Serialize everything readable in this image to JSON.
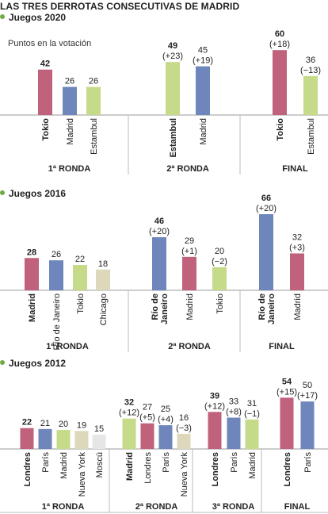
{
  "title": "LAS TRES DERROTAS CONSECUTIVAS DE MADRID",
  "subtitle": "Puntos en la votación",
  "colors": {
    "pink": "#c0627b",
    "blue": "#6e86bb",
    "green": "#c5db8a",
    "beige": "#ddd8bb",
    "gray": "#e6e6e6",
    "accent": "#74a844"
  },
  "chart_data": [
    {
      "type": "bar",
      "title": "Juegos 2020",
      "rounds": [
        {
          "label": "1ª RONDA",
          "bars": [
            {
              "name": "Tokio",
              "value": 42,
              "change": "",
              "bold": true,
              "color": "pink"
            },
            {
              "name": "Madrid",
              "value": 26,
              "change": "",
              "bold": false,
              "color": "blue"
            },
            {
              "name": "Estambul",
              "value": 26,
              "change": "",
              "bold": false,
              "color": "green"
            }
          ]
        },
        {
          "label": "2ª RONDA",
          "bars": [
            {
              "name": "Estambul",
              "value": 49,
              "change": "(+23)",
              "bold": true,
              "color": "green"
            },
            {
              "name": "Madrid",
              "value": 45,
              "change": "(+19)",
              "bold": false,
              "color": "blue"
            }
          ]
        },
        {
          "label": "FINAL",
          "bars": [
            {
              "name": "Tokio",
              "value": 60,
              "change": "(+18)",
              "bold": true,
              "color": "pink"
            },
            {
              "name": "Estambul",
              "value": 36,
              "change": "(−13)",
              "bold": false,
              "color": "green"
            }
          ]
        }
      ]
    },
    {
      "type": "bar",
      "title": "Juegos 2016",
      "rounds": [
        {
          "label": "1ª RONDA",
          "bars": [
            {
              "name": "Madrid",
              "value": 28,
              "change": "",
              "bold": true,
              "color": "pink"
            },
            {
              "name": "Río de Janeiro",
              "value": 26,
              "change": "",
              "bold": false,
              "color": "blue"
            },
            {
              "name": "Tokio",
              "value": 22,
              "change": "",
              "bold": false,
              "color": "green"
            },
            {
              "name": "Chicago",
              "value": 18,
              "change": "",
              "bold": false,
              "color": "beige"
            }
          ]
        },
        {
          "label": "2ª RONDA",
          "bars": [
            {
              "name": "Río de Janeiro",
              "value": 46,
              "change": "(+20)",
              "bold": true,
              "color": "blue"
            },
            {
              "name": "Madrid",
              "value": 29,
              "change": "(+1)",
              "bold": false,
              "color": "pink"
            },
            {
              "name": "Tokio",
              "value": 20,
              "change": "(−2)",
              "bold": false,
              "color": "green"
            }
          ]
        },
        {
          "label": "FINAL",
          "bars": [
            {
              "name": "Río de Janeiro",
              "value": 66,
              "change": "(+20)",
              "bold": true,
              "color": "blue"
            },
            {
              "name": "Madrid",
              "value": 32,
              "change": "(+3)",
              "bold": false,
              "color": "pink"
            }
          ]
        }
      ]
    },
    {
      "type": "bar",
      "title": "Juegos 2012",
      "rounds": [
        {
          "label": "1ª RONDA",
          "bars": [
            {
              "name": "Londres",
              "value": 22,
              "change": "",
              "bold": true,
              "color": "pink"
            },
            {
              "name": "París",
              "value": 21,
              "change": "",
              "bold": false,
              "color": "blue"
            },
            {
              "name": "Madrid",
              "value": 20,
              "change": "",
              "bold": false,
              "color": "green"
            },
            {
              "name": "Nueva York",
              "value": 19,
              "change": "",
              "bold": false,
              "color": "beige"
            },
            {
              "name": "Moscú",
              "value": 15,
              "change": "",
              "bold": false,
              "color": "gray"
            }
          ]
        },
        {
          "label": "2ª RONDA",
          "bars": [
            {
              "name": "Madrid",
              "value": 32,
              "change": "(+12)",
              "bold": true,
              "color": "green"
            },
            {
              "name": "Londres",
              "value": 27,
              "change": "(+5)",
              "bold": false,
              "color": "pink"
            },
            {
              "name": "París",
              "value": 25,
              "change": "(+4)",
              "bold": false,
              "color": "blue"
            },
            {
              "name": "Nueva York",
              "value": 16,
              "change": "(−3)",
              "bold": false,
              "color": "beige"
            }
          ]
        },
        {
          "label": "3ª RONDA",
          "bars": [
            {
              "name": "Londres",
              "value": 39,
              "change": "(+12)",
              "bold": true,
              "color": "pink"
            },
            {
              "name": "París",
              "value": 33,
              "change": "(+8)",
              "bold": false,
              "color": "blue"
            },
            {
              "name": "Madrid",
              "value": 31,
              "change": "(−1)",
              "bold": false,
              "color": "green"
            }
          ]
        },
        {
          "label": "FINAL",
          "bars": [
            {
              "name": "Londres",
              "value": 54,
              "change": "(+15)",
              "bold": true,
              "color": "pink"
            },
            {
              "name": "París",
              "value": 50,
              "change": "(+17)",
              "bold": false,
              "color": "blue"
            }
          ]
        }
      ]
    }
  ]
}
